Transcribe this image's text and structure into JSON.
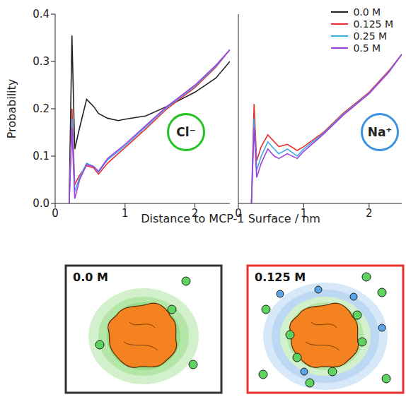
{
  "chart_data": [
    {
      "type": "line",
      "title": "Cl⁻",
      "ylabel": "Probability",
      "xlim": [
        0,
        2.5
      ],
      "ylim": [
        0,
        0.4
      ],
      "xticks": [
        0,
        1,
        2
      ],
      "yticks": [
        {
          "value": 0,
          "label": "0.0"
        },
        0.1,
        0.2,
        0.3,
        0.4
      ],
      "tick_labels": true,
      "x": [
        0.2,
        0.24,
        0.28,
        0.35,
        0.45,
        0.55,
        0.62,
        0.75,
        0.9,
        1.0,
        1.3,
        1.6,
        2.0,
        2.3,
        2.5
      ],
      "series": [
        {
          "name": "0.0 M",
          "color": "#222222",
          "values": [
            0,
            0.355,
            0.115,
            0.16,
            0.22,
            0.205,
            0.19,
            0.18,
            0.175,
            0.178,
            0.185,
            0.205,
            0.235,
            0.265,
            0.3
          ]
        },
        {
          "name": "0.125 M",
          "color": "#e8312f",
          "values": [
            0,
            0.2,
            0.04,
            0.06,
            0.08,
            0.075,
            0.062,
            0.085,
            0.105,
            0.118,
            0.158,
            0.2,
            0.245,
            0.288,
            0.325
          ]
        },
        {
          "name": "0.25 M",
          "color": "#3ea8e8",
          "values": [
            0,
            0.18,
            0.025,
            0.055,
            0.085,
            0.078,
            0.066,
            0.092,
            0.11,
            0.122,
            0.162,
            0.203,
            0.248,
            0.29,
            0.325
          ]
        },
        {
          "name": "0.5 M",
          "color": "#a040e0",
          "values": [
            0,
            0.16,
            0.01,
            0.05,
            0.082,
            0.078,
            0.068,
            0.095,
            0.113,
            0.125,
            0.165,
            0.205,
            0.25,
            0.292,
            0.325
          ]
        }
      ]
    },
    {
      "type": "line",
      "title": "Na⁺",
      "xlim": [
        0,
        2.5
      ],
      "ylim": [
        0,
        0.4
      ],
      "xticks": [
        0,
        1,
        2
      ],
      "yticks": [
        {
          "value": 0,
          "label": "0.0"
        },
        0.1,
        0.2,
        0.3,
        0.4
      ],
      "tick_labels": "x",
      "legend": "upper right",
      "x": [
        0.2,
        0.24,
        0.28,
        0.35,
        0.45,
        0.55,
        0.62,
        0.75,
        0.9,
        1.0,
        1.3,
        1.6,
        2.0,
        2.3,
        2.5
      ],
      "series": [
        {
          "name": "0.0 M",
          "color": "#222222",
          "values": [
            null,
            null,
            null,
            null,
            null,
            null,
            null,
            null,
            null,
            null,
            null,
            null,
            null,
            null,
            null
          ]
        },
        {
          "name": "0.125 M",
          "color": "#e8312f",
          "values": [
            0,
            0.21,
            0.09,
            0.12,
            0.145,
            0.13,
            0.12,
            0.125,
            0.112,
            0.12,
            0.15,
            0.19,
            0.235,
            0.28,
            0.315
          ]
        },
        {
          "name": "0.25 M",
          "color": "#3ea8e8",
          "values": [
            0,
            0.18,
            0.07,
            0.1,
            0.13,
            0.115,
            0.105,
            0.115,
            0.1,
            0.115,
            0.148,
            0.188,
            0.233,
            0.278,
            0.315
          ]
        },
        {
          "name": "0.5 M",
          "color": "#a040e0",
          "values": [
            0,
            0.16,
            0.055,
            0.085,
            0.115,
            0.1,
            0.095,
            0.105,
            0.095,
            0.11,
            0.146,
            0.186,
            0.232,
            0.277,
            0.315
          ]
        }
      ]
    }
  ],
  "xlabel": "Distance to MCP-1 Surface / nm",
  "diagram": {
    "panels": [
      {
        "label": "0.0 M",
        "color": "#333333"
      },
      {
        "label": "0.125 M",
        "color": "#e8312f"
      }
    ]
  }
}
